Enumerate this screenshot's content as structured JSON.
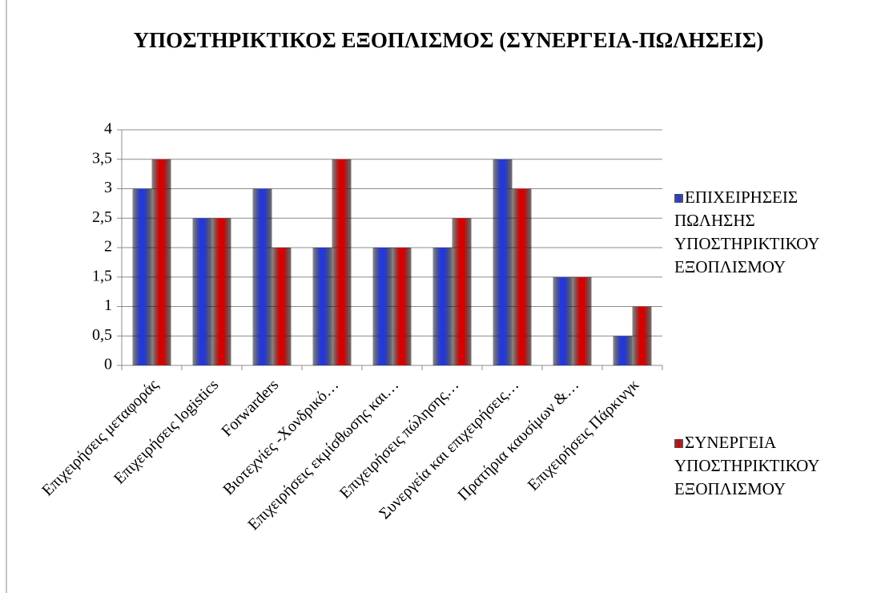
{
  "chart_data": {
    "type": "bar",
    "title": "ΥΠΟΣΤΗΡΙΚΤΙΚΟΣ ΕΞΟΠΛΙΣΜΟΣ (ΣΥΝΕΡΓΕΙΑ-ΠΩΛΗΣΕΙΣ)",
    "categories": [
      "Επιχειρήσεις μεταφοράς",
      "Επιχειρήσεις logistics",
      "Forwarders",
      "Βιοτεχνίες -Χονδρικό…",
      "Επιχειρήσεις εκμίσθωσης και…",
      "Επιχειρήσεις πώλησης…",
      "Συνεργεία και επιχειρήσεις…",
      "Πρατήρια καυσίμων &…",
      "Επιχειρήσεις Πάρκινγκ"
    ],
    "series": [
      {
        "name": "ΕΠΙΧΕΙΡΗΣΕΙΣ ΠΩΛΗΣΗΣ ΥΠΟΣΤΗΡΙΚΤΙΚΟΥ ΕΞΟΠΛΙΣΜΟΥ",
        "color": "#2438d8",
        "values": [
          3,
          2.5,
          3,
          2,
          2,
          2,
          3.5,
          1.5,
          0.5
        ]
      },
      {
        "name": "ΣΥΝΕΡΓΕΙΑ ΥΠΟΣΤΗΡΙΚΤΙΚΟΥ ΕΞΟΠΛΙΣΜΟΥ",
        "color": "#d60000",
        "values": [
          3.5,
          2.5,
          2,
          3.5,
          2,
          2.5,
          3,
          1.5,
          1
        ]
      }
    ],
    "ylim": [
      0,
      4
    ],
    "yticks": [
      0,
      {
        "value": 0.5,
        "label": "0,5"
      },
      1,
      {
        "value": 1.5,
        "label": "1,5"
      },
      2,
      {
        "value": 2.5,
        "label": "2,5"
      },
      3,
      {
        "value": 3.5,
        "label": "3,5"
      },
      4
    ],
    "grid": true,
    "legend": "right"
  }
}
